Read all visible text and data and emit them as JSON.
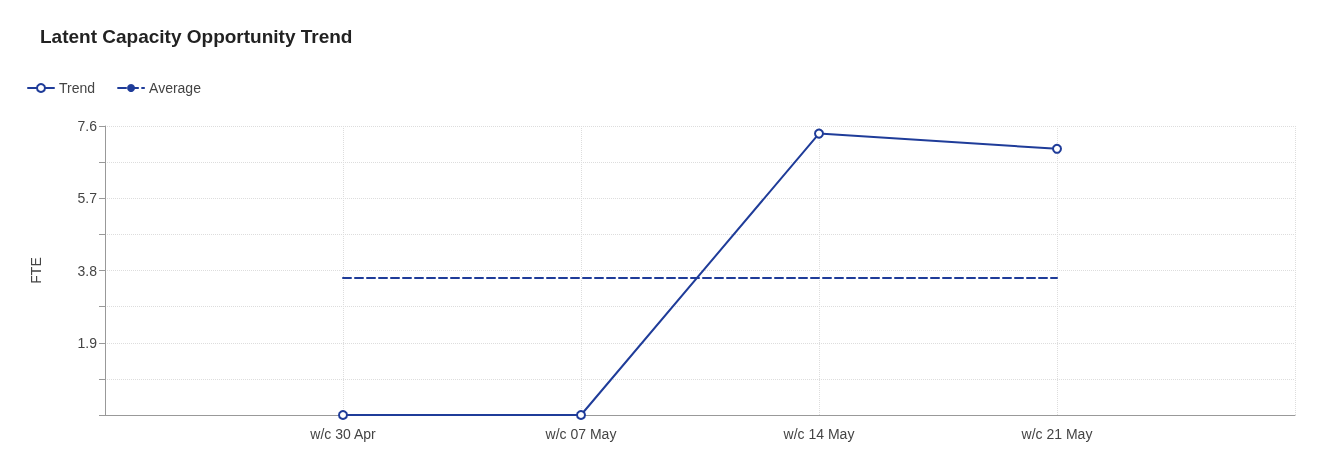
{
  "chart_data": {
    "type": "line",
    "title": "Latent Capacity Opportunity Trend",
    "ylabel": "FTE",
    "categories": [
      null,
      "w/c 30 Apr",
      "w/c 07 May",
      "w/c 14 May",
      "w/c 21 May",
      null
    ],
    "series": [
      {
        "name": "Trend",
        "color": "#1f3c99",
        "values": [
          null,
          0,
          0,
          7.4,
          7.0,
          null
        ],
        "marker": "circle",
        "line_style": "solid"
      },
      {
        "name": "Average",
        "color": "#1f3c99",
        "values": [
          null,
          3.6,
          3.6,
          3.6,
          3.6,
          null
        ],
        "marker": "none",
        "line_style": "dashed"
      }
    ],
    "ylim": [
      0,
      7.6
    ],
    "yticks": [
      {
        "value": 0,
        "label": null
      },
      {
        "value": 0.95,
        "label": null
      },
      1.9,
      {
        "value": 2.85,
        "label": null
      },
      3.8,
      {
        "value": 4.75,
        "label": null
      },
      5.7,
      {
        "value": 6.65,
        "label": null
      },
      7.6
    ],
    "grid": true,
    "legend": "top left"
  }
}
